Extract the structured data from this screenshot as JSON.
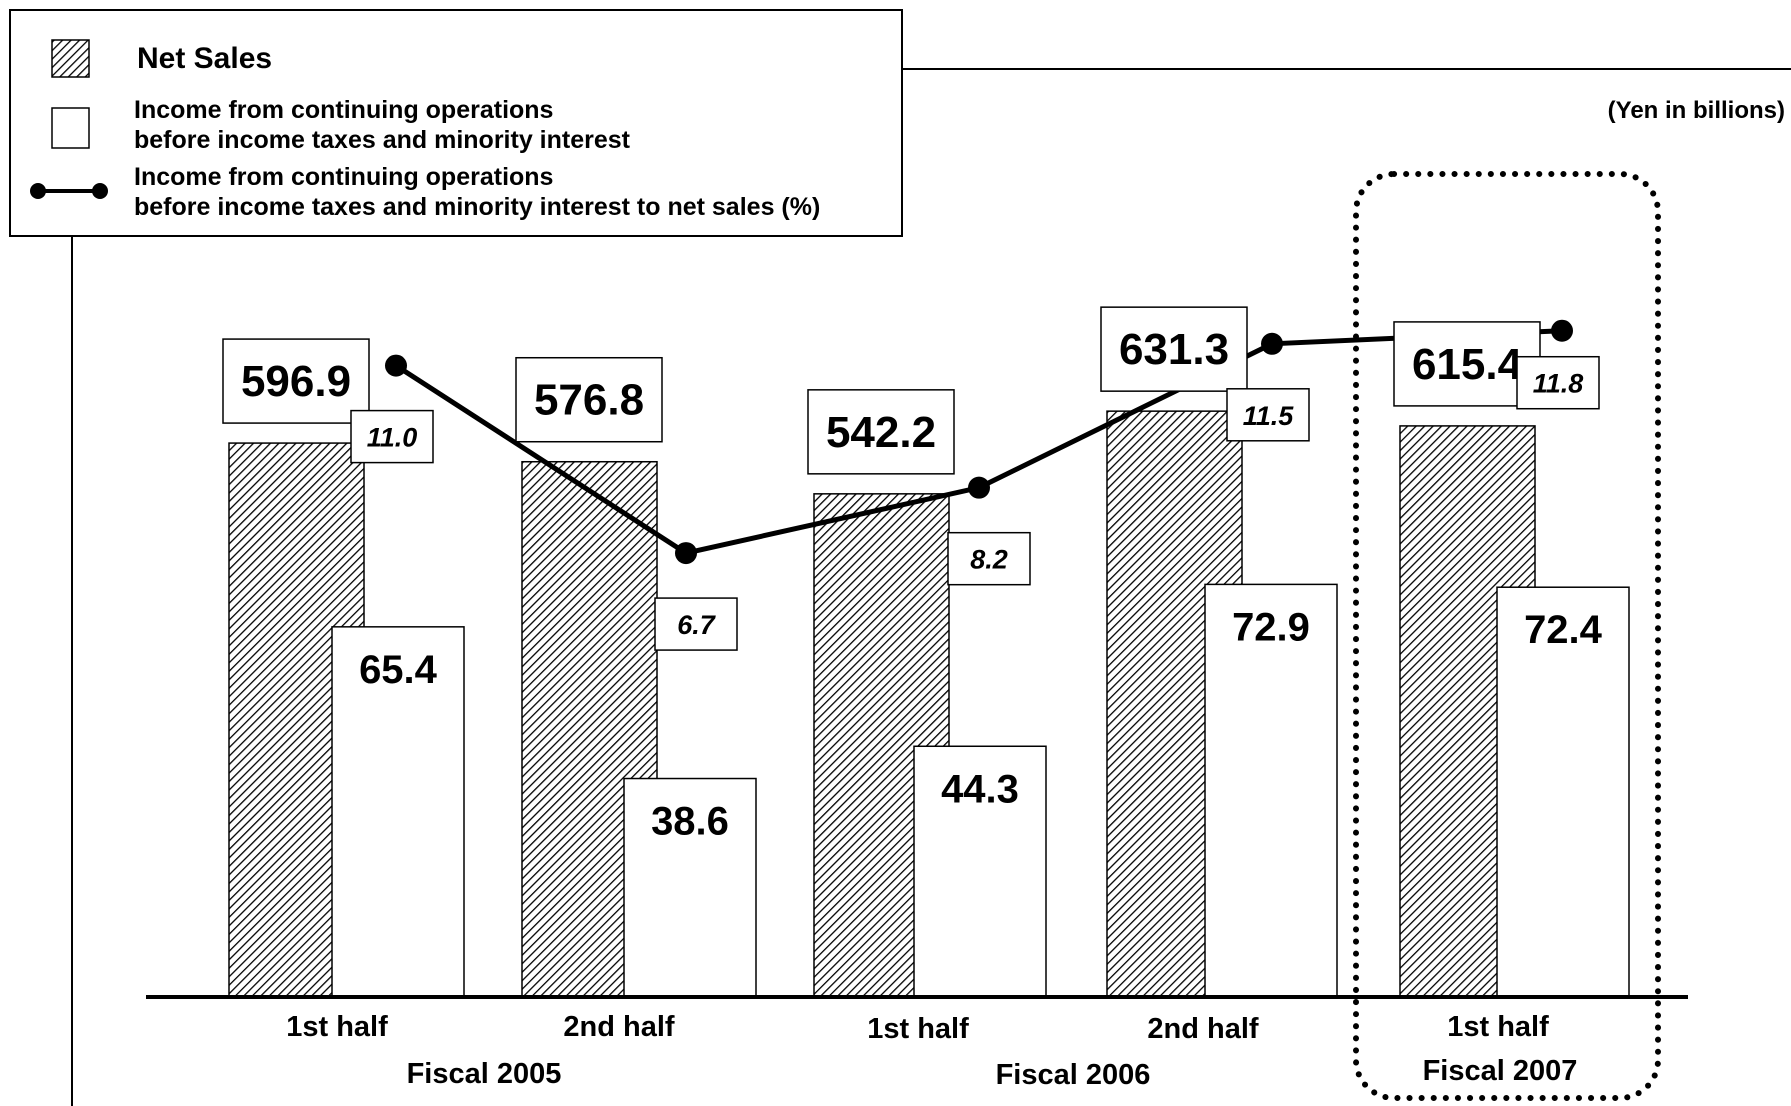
{
  "chart_data": {
    "type": "bar",
    "unit_note": "(Yen in billions)",
    "categories": [
      "1st half",
      "2nd half",
      "1st half",
      "2nd half",
      "1st half"
    ],
    "groups": [
      "Fiscal 2005",
      "Fiscal 2006",
      "Fiscal 2007"
    ],
    "series": [
      {
        "name": "Net Sales",
        "kind": "bar",
        "pattern": "diagonal-hatch",
        "values": [
          596.9,
          576.8,
          542.2,
          631.3,
          615.4
        ],
        "value_labels": [
          "596.9",
          "576.8",
          "542.2",
          "631.3",
          "615.4"
        ]
      },
      {
        "name": "Income from continuing operations before income taxes and minority interest",
        "kind": "bar",
        "pattern": "white",
        "values": [
          65.4,
          38.6,
          44.3,
          72.9,
          72.4
        ],
        "value_labels": [
          "65.4",
          "38.6",
          "44.3",
          "72.9",
          "72.4"
        ]
      },
      {
        "name": "Income from continuing operations before income taxes and minority interest to net sales (%)",
        "kind": "line",
        "values": [
          11.0,
          6.7,
          8.2,
          11.5,
          11.8
        ],
        "value_labels": [
          "11.0",
          "6.7",
          "8.2",
          "11.5",
          "11.8"
        ]
      }
    ],
    "legend": {
      "placement": "top-left",
      "entries": [
        {
          "lines": [
            "Net Sales"
          ]
        },
        {
          "lines": [
            "Income from continuing operations",
            "before income taxes and minority interest"
          ]
        },
        {
          "lines": [
            "Income from continuing operations",
            "before income taxes and minority interest to net sales (%)"
          ]
        }
      ]
    },
    "highlight_group": "Fiscal 2007",
    "colors": {
      "bar_fill": "#ffffff",
      "hatch": "#000000",
      "line": "#000000",
      "axis": "#000000"
    }
  }
}
